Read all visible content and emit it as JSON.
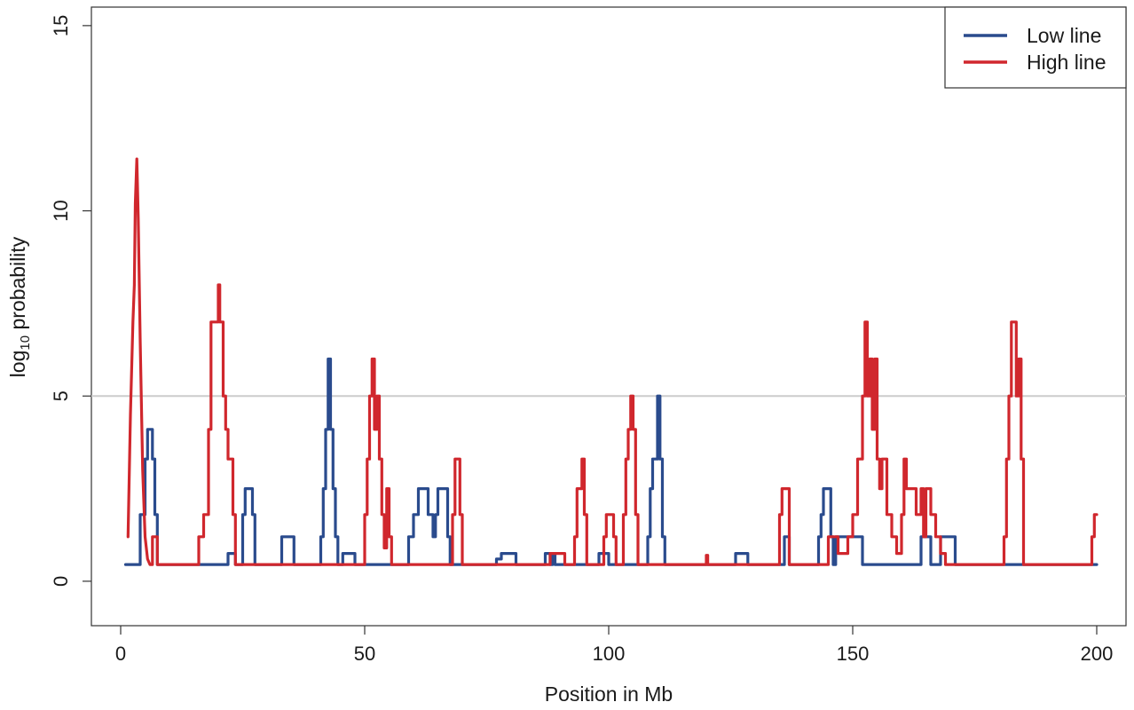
{
  "chart_data": {
    "type": "line",
    "title": "",
    "xlabel": "Position in Mb",
    "ylabel_main": "log",
    "ylabel_sub": "10",
    "ylabel_rest": " probability",
    "xlim": [
      -6,
      206
    ],
    "ylim": [
      -1.2,
      15.5
    ],
    "x_ticks": [
      0,
      50,
      100,
      150,
      200
    ],
    "y_ticks": [
      0,
      5,
      10,
      15
    ],
    "x_tick_labels": [
      "0",
      "50",
      "100",
      "150",
      "200"
    ],
    "y_tick_labels": [
      "0",
      "5",
      "10",
      "15"
    ],
    "threshold": 5,
    "threshold_color": "#cccccc",
    "grid": false,
    "legend_position": "top-right",
    "series": [
      {
        "name": "Low line",
        "color": "#2a4b8d",
        "points": [
          [
            1,
            0.45
          ],
          [
            4,
            0.45
          ],
          [
            4,
            1.8
          ],
          [
            5,
            1.8
          ],
          [
            5,
            3.3
          ],
          [
            5.5,
            3.3
          ],
          [
            5.5,
            4.1
          ],
          [
            6.5,
            4.1
          ],
          [
            6.5,
            3.3
          ],
          [
            7,
            3.3
          ],
          [
            7,
            1.8
          ],
          [
            7.5,
            1.8
          ],
          [
            7.5,
            0.45
          ],
          [
            22,
            0.45
          ],
          [
            22,
            0.75
          ],
          [
            23.5,
            0.75
          ],
          [
            23.5,
            0.45
          ],
          [
            25,
            0.45
          ],
          [
            25,
            1.8
          ],
          [
            25.5,
            1.8
          ],
          [
            25.5,
            2.5
          ],
          [
            27,
            2.5
          ],
          [
            27,
            1.8
          ],
          [
            27.5,
            1.8
          ],
          [
            27.5,
            0.45
          ],
          [
            33,
            0.45
          ],
          [
            33,
            1.2
          ],
          [
            35.5,
            1.2
          ],
          [
            35.5,
            0.45
          ],
          [
            41,
            0.45
          ],
          [
            41,
            1.2
          ],
          [
            41.5,
            1.2
          ],
          [
            41.5,
            2.5
          ],
          [
            42,
            2.5
          ],
          [
            42,
            4.1
          ],
          [
            42.5,
            4.1
          ],
          [
            42.5,
            6.0
          ],
          [
            43,
            6.0
          ],
          [
            43,
            4.1
          ],
          [
            43.5,
            4.1
          ],
          [
            43.5,
            2.5
          ],
          [
            44,
            2.5
          ],
          [
            44,
            1.2
          ],
          [
            44.5,
            1.2
          ],
          [
            44.5,
            0.45
          ],
          [
            45.5,
            0.45
          ],
          [
            45.5,
            0.75
          ],
          [
            48,
            0.75
          ],
          [
            48,
            0.45
          ],
          [
            59,
            0.45
          ],
          [
            59,
            1.2
          ],
          [
            60,
            1.2
          ],
          [
            60,
            1.8
          ],
          [
            61,
            1.8
          ],
          [
            61,
            2.5
          ],
          [
            63,
            2.5
          ],
          [
            63,
            1.8
          ],
          [
            64,
            1.8
          ],
          [
            64,
            1.2
          ],
          [
            64.5,
            1.2
          ],
          [
            64.5,
            1.8
          ],
          [
            65,
            1.8
          ],
          [
            65,
            2.5
          ],
          [
            67,
            2.5
          ],
          [
            67,
            1.2
          ],
          [
            67.5,
            1.2
          ],
          [
            67.5,
            0.45
          ],
          [
            77,
            0.45
          ],
          [
            77,
            0.6
          ],
          [
            78,
            0.6
          ],
          [
            78,
            0.75
          ],
          [
            81,
            0.75
          ],
          [
            81,
            0.45
          ],
          [
            87,
            0.45
          ],
          [
            87,
            0.75
          ],
          [
            88,
            0.75
          ],
          [
            88,
            0.45
          ],
          [
            88.5,
            0.45
          ],
          [
            88.5,
            0.75
          ],
          [
            89,
            0.75
          ],
          [
            89,
            0.45
          ],
          [
            98,
            0.45
          ],
          [
            98,
            0.75
          ],
          [
            100,
            0.75
          ],
          [
            100,
            0.45
          ],
          [
            108,
            0.45
          ],
          [
            108,
            1.2
          ],
          [
            108.5,
            1.2
          ],
          [
            108.5,
            2.5
          ],
          [
            109,
            2.5
          ],
          [
            109,
            3.3
          ],
          [
            110,
            3.3
          ],
          [
            110,
            5.0
          ],
          [
            110.5,
            5.0
          ],
          [
            110.5,
            3.3
          ],
          [
            111,
            3.3
          ],
          [
            111,
            1.2
          ],
          [
            111.5,
            1.2
          ],
          [
            111.5,
            0.45
          ],
          [
            126,
            0.45
          ],
          [
            126,
            0.75
          ],
          [
            128.5,
            0.75
          ],
          [
            128.5,
            0.45
          ],
          [
            136,
            0.45
          ],
          [
            136,
            1.2
          ],
          [
            137,
            1.2
          ],
          [
            137,
            0.45
          ],
          [
            143,
            0.45
          ],
          [
            143,
            1.2
          ],
          [
            143.5,
            1.2
          ],
          [
            143.5,
            1.8
          ],
          [
            144,
            1.8
          ],
          [
            144,
            2.5
          ],
          [
            145.5,
            2.5
          ],
          [
            145.5,
            1.2
          ],
          [
            146,
            1.2
          ],
          [
            146,
            0.45
          ],
          [
            146.5,
            0.45
          ],
          [
            146.5,
            1.2
          ],
          [
            152,
            1.2
          ],
          [
            152,
            0.45
          ],
          [
            164,
            0.45
          ],
          [
            164,
            1.2
          ],
          [
            166,
            1.2
          ],
          [
            166,
            0.45
          ],
          [
            168,
            0.45
          ],
          [
            168,
            1.2
          ],
          [
            171,
            1.2
          ],
          [
            171,
            0.45
          ],
          [
            200,
            0.45
          ]
        ]
      },
      {
        "name": "High line",
        "color": "#d0272d",
        "points": [
          [
            1.5,
            1.2
          ],
          [
            2,
            4.5
          ],
          [
            2.5,
            7.0
          ],
          [
            2.8,
            8.0
          ],
          [
            3,
            10.2
          ],
          [
            3.3,
            11.4
          ],
          [
            3.6,
            9.8
          ],
          [
            4,
            6.5
          ],
          [
            4.5,
            3.0
          ],
          [
            5,
            1.2
          ],
          [
            5.5,
            0.6
          ],
          [
            6,
            0.45
          ],
          [
            6.5,
            0.45
          ],
          [
            6.5,
            1.2
          ],
          [
            7.5,
            1.2
          ],
          [
            7.5,
            0.45
          ],
          [
            16,
            0.45
          ],
          [
            16,
            1.2
          ],
          [
            17,
            1.2
          ],
          [
            17,
            1.8
          ],
          [
            18,
            1.8
          ],
          [
            18,
            4.1
          ],
          [
            18.5,
            4.1
          ],
          [
            18.5,
            7.0
          ],
          [
            20,
            7.0
          ],
          [
            20,
            8.0
          ],
          [
            20.3,
            8.0
          ],
          [
            20.3,
            7.0
          ],
          [
            21,
            7.0
          ],
          [
            21,
            5.0
          ],
          [
            21.5,
            5.0
          ],
          [
            21.5,
            4.1
          ],
          [
            22,
            4.1
          ],
          [
            22,
            3.3
          ],
          [
            23,
            3.3
          ],
          [
            23,
            1.8
          ],
          [
            23.5,
            1.8
          ],
          [
            23.5,
            0.45
          ],
          [
            50,
            0.45
          ],
          [
            50,
            1.8
          ],
          [
            50.5,
            1.8
          ],
          [
            50.5,
            3.3
          ],
          [
            51,
            3.3
          ],
          [
            51,
            5.0
          ],
          [
            51.5,
            5.0
          ],
          [
            51.5,
            6.0
          ],
          [
            52,
            6.0
          ],
          [
            52,
            4.1
          ],
          [
            52.5,
            4.1
          ],
          [
            52.5,
            5.0
          ],
          [
            53,
            5.0
          ],
          [
            53,
            3.3
          ],
          [
            53.5,
            3.3
          ],
          [
            53.5,
            1.8
          ],
          [
            54,
            1.8
          ],
          [
            54,
            0.9
          ],
          [
            54.5,
            0.9
          ],
          [
            54.5,
            2.5
          ],
          [
            55,
            2.5
          ],
          [
            55,
            1.2
          ],
          [
            55.5,
            1.2
          ],
          [
            55.5,
            0.45
          ],
          [
            68,
            0.45
          ],
          [
            68,
            1.8
          ],
          [
            68.5,
            1.8
          ],
          [
            68.5,
            3.3
          ],
          [
            69.5,
            3.3
          ],
          [
            69.5,
            1.8
          ],
          [
            70,
            1.8
          ],
          [
            70,
            0.45
          ],
          [
            88,
            0.45
          ],
          [
            88,
            0.75
          ],
          [
            91,
            0.75
          ],
          [
            91,
            0.45
          ],
          [
            93,
            0.45
          ],
          [
            93,
            1.2
          ],
          [
            93.5,
            1.2
          ],
          [
            93.5,
            2.5
          ],
          [
            94.5,
            2.5
          ],
          [
            94.5,
            3.3
          ],
          [
            95,
            3.3
          ],
          [
            95,
            1.8
          ],
          [
            95.5,
            1.8
          ],
          [
            95.5,
            0.45
          ],
          [
            99,
            0.45
          ],
          [
            99,
            1.2
          ],
          [
            99.5,
            1.2
          ],
          [
            99.5,
            1.8
          ],
          [
            101,
            1.8
          ],
          [
            101,
            1.2
          ],
          [
            101.5,
            1.2
          ],
          [
            101.5,
            0.45
          ],
          [
            103,
            0.45
          ],
          [
            103,
            1.8
          ],
          [
            103.5,
            1.8
          ],
          [
            103.5,
            3.3
          ],
          [
            104,
            3.3
          ],
          [
            104,
            4.1
          ],
          [
            104.5,
            4.1
          ],
          [
            104.5,
            5.0
          ],
          [
            105,
            5.0
          ],
          [
            105,
            4.1
          ],
          [
            105.5,
            4.1
          ],
          [
            105.5,
            1.8
          ],
          [
            106,
            1.8
          ],
          [
            106,
            0.45
          ],
          [
            120,
            0.45
          ],
          [
            120,
            0.7
          ],
          [
            120.3,
            0.7
          ],
          [
            120.3,
            0.45
          ],
          [
            135,
            0.45
          ],
          [
            135,
            1.8
          ],
          [
            135.5,
            1.8
          ],
          [
            135.5,
            2.5
          ],
          [
            137,
            2.5
          ],
          [
            137,
            0.45
          ],
          [
            145,
            0.45
          ],
          [
            145,
            1.2
          ],
          [
            147,
            1.2
          ],
          [
            147,
            0.75
          ],
          [
            149,
            0.75
          ],
          [
            149,
            1.2
          ],
          [
            150,
            1.2
          ],
          [
            150,
            1.8
          ],
          [
            151,
            1.8
          ],
          [
            151,
            3.3
          ],
          [
            152,
            3.3
          ],
          [
            152,
            5.0
          ],
          [
            152.5,
            5.0
          ],
          [
            152.5,
            7.0
          ],
          [
            153,
            7.0
          ],
          [
            153,
            5.0
          ],
          [
            153.5,
            5.0
          ],
          [
            153.5,
            6.0
          ],
          [
            154,
            6.0
          ],
          [
            154,
            4.1
          ],
          [
            154.5,
            4.1
          ],
          [
            154.5,
            6.0
          ],
          [
            155,
            6.0
          ],
          [
            155,
            3.3
          ],
          [
            155.5,
            3.3
          ],
          [
            155.5,
            2.5
          ],
          [
            156,
            2.5
          ],
          [
            156,
            3.3
          ],
          [
            157,
            3.3
          ],
          [
            157,
            1.8
          ],
          [
            158,
            1.8
          ],
          [
            158,
            1.2
          ],
          [
            159,
            1.2
          ],
          [
            159,
            0.75
          ],
          [
            160,
            0.75
          ],
          [
            160,
            1.8
          ],
          [
            160.5,
            1.8
          ],
          [
            160.5,
            3.3
          ],
          [
            161,
            3.3
          ],
          [
            161,
            2.5
          ],
          [
            163,
            2.5
          ],
          [
            163,
            1.8
          ],
          [
            164,
            1.8
          ],
          [
            164,
            2.5
          ],
          [
            164.5,
            2.5
          ],
          [
            164.5,
            1.2
          ],
          [
            165,
            1.2
          ],
          [
            165,
            2.5
          ],
          [
            166,
            2.5
          ],
          [
            166,
            1.8
          ],
          [
            167,
            1.8
          ],
          [
            167,
            1.2
          ],
          [
            168,
            1.2
          ],
          [
            168,
            0.75
          ],
          [
            169,
            0.75
          ],
          [
            169,
            0.45
          ],
          [
            181,
            0.45
          ],
          [
            181,
            1.2
          ],
          [
            181.5,
            1.2
          ],
          [
            181.5,
            3.3
          ],
          [
            182,
            3.3
          ],
          [
            182,
            5.0
          ],
          [
            182.5,
            5.0
          ],
          [
            182.5,
            7.0
          ],
          [
            183.5,
            7.0
          ],
          [
            183.5,
            5.0
          ],
          [
            184,
            5.0
          ],
          [
            184,
            6.0
          ],
          [
            184.5,
            6.0
          ],
          [
            184.5,
            3.3
          ],
          [
            185,
            3.3
          ],
          [
            185,
            0.45
          ],
          [
            199,
            0.45
          ],
          [
            199,
            1.2
          ],
          [
            199.5,
            1.2
          ],
          [
            199.5,
            1.8
          ],
          [
            200,
            1.8
          ]
        ]
      }
    ]
  }
}
